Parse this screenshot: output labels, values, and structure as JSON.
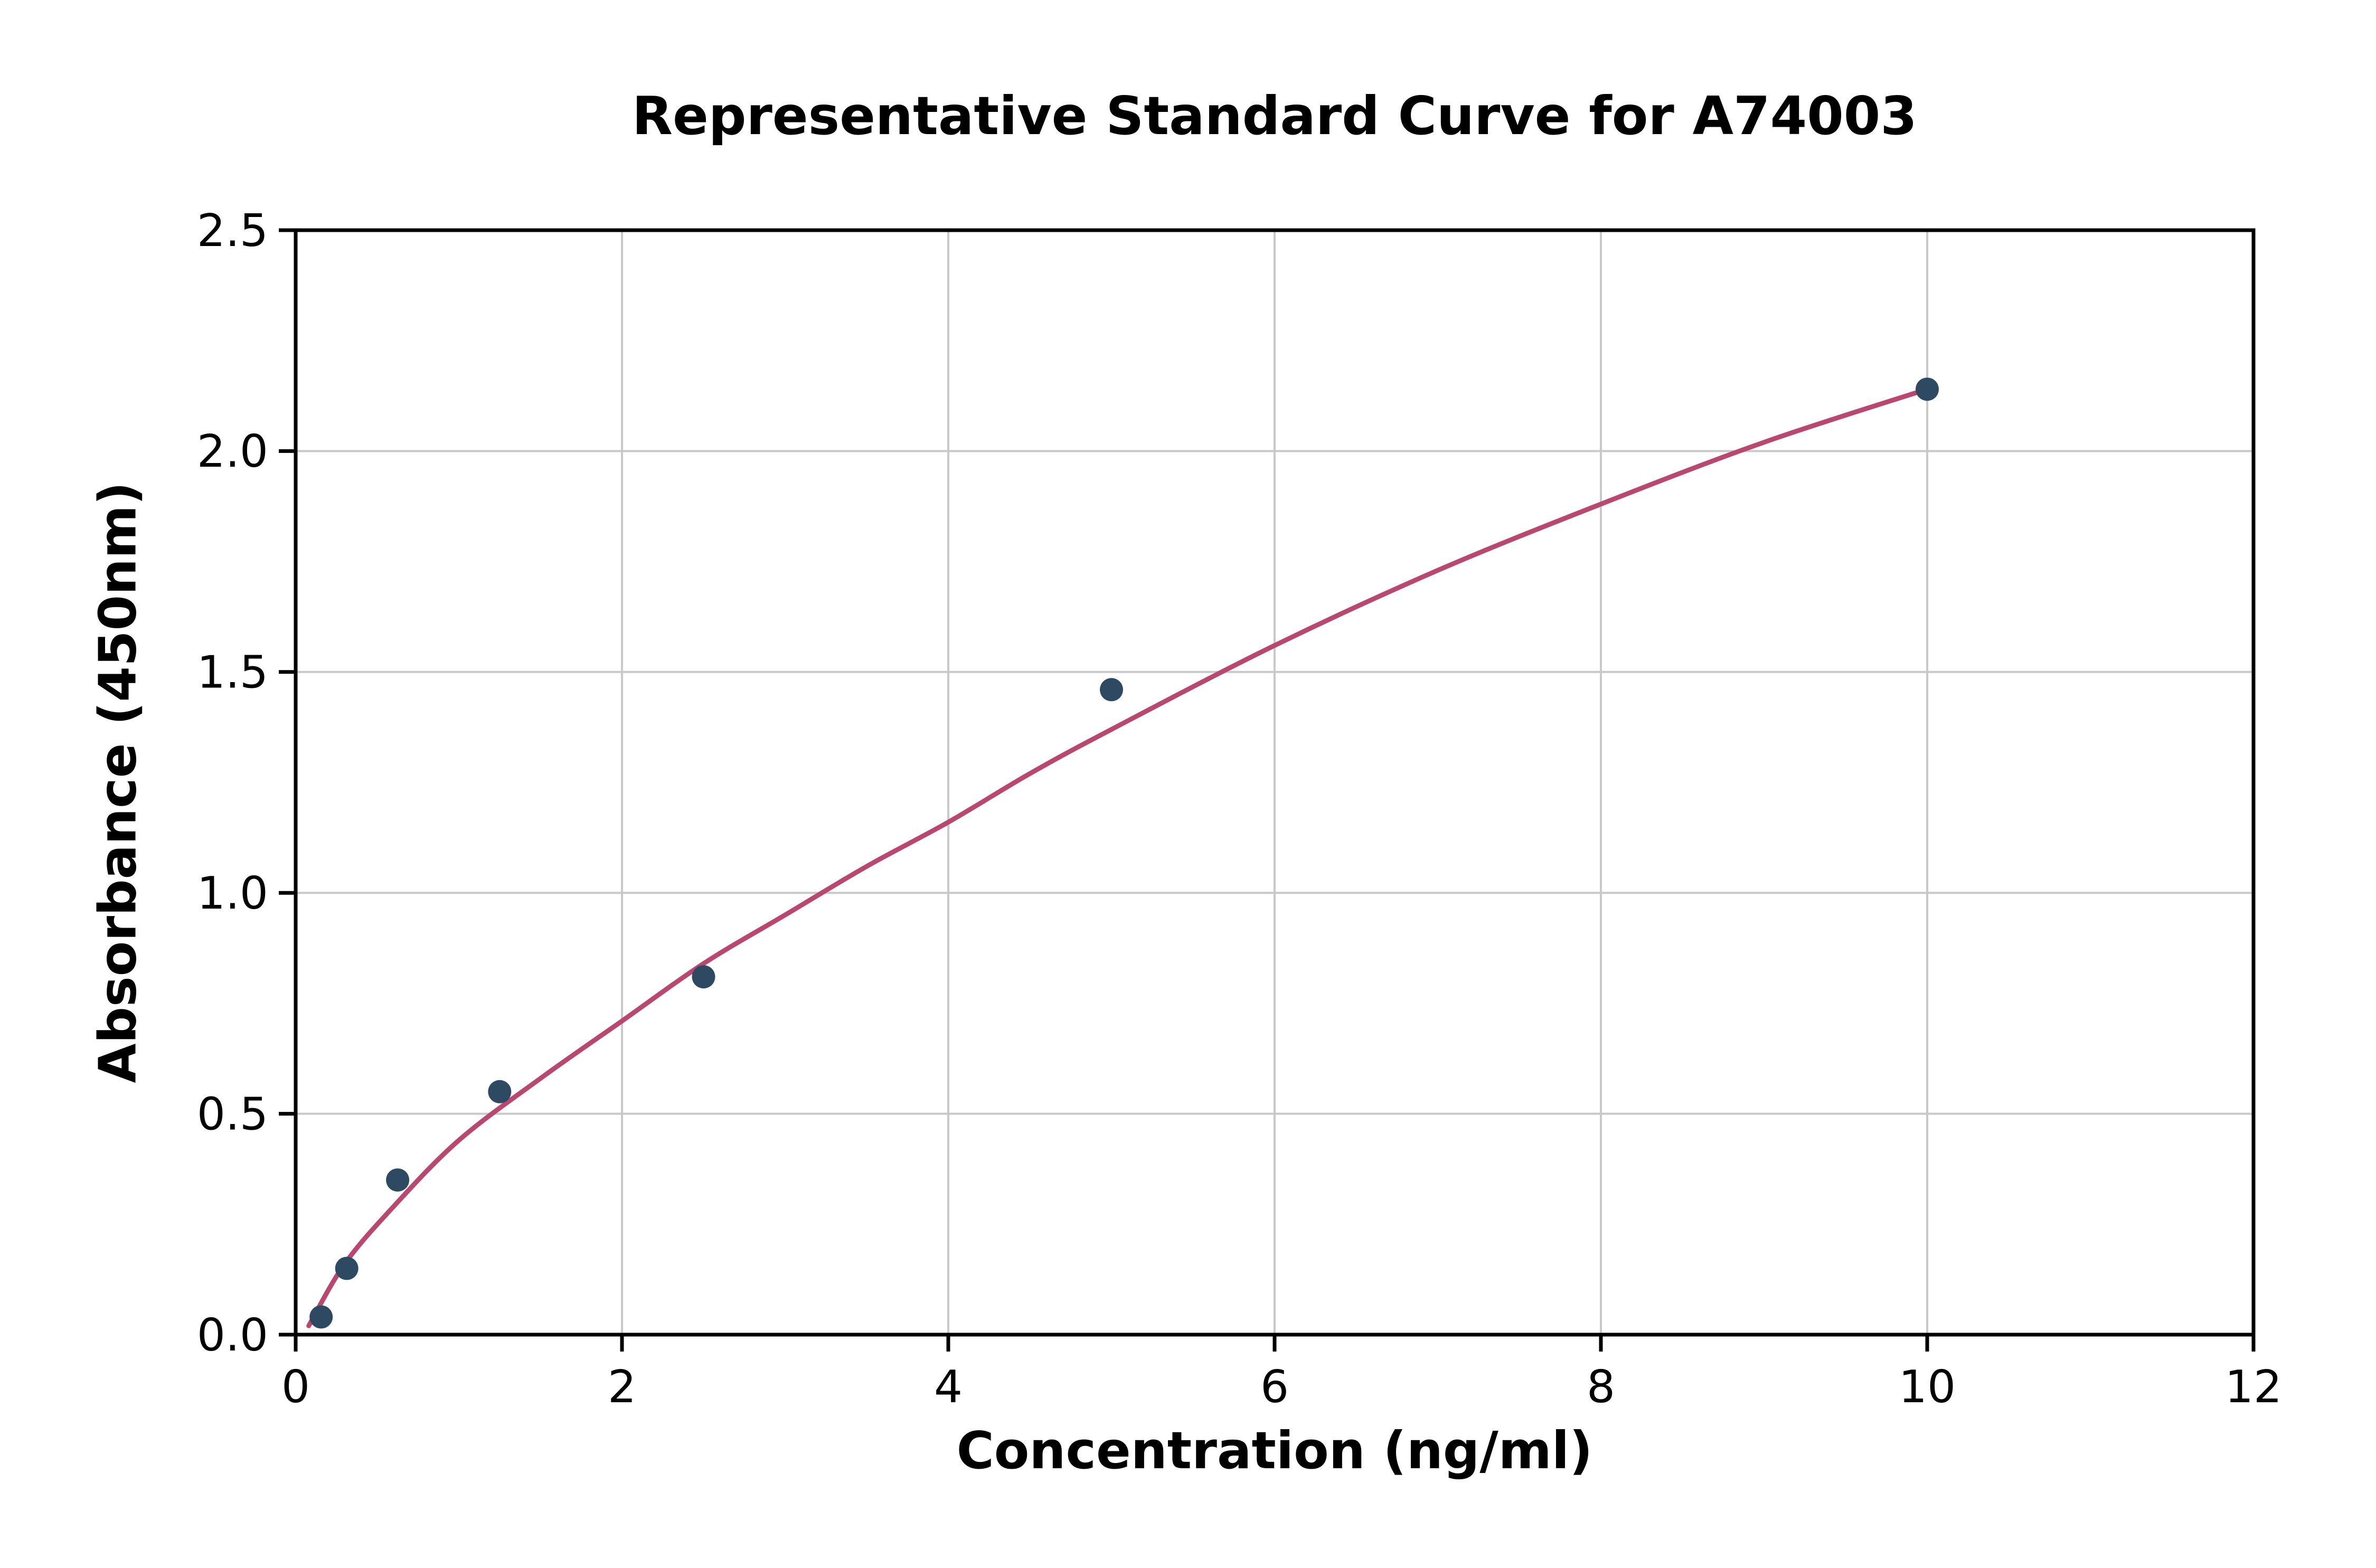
{
  "chart_data": {
    "type": "scatter",
    "title": "Representative Standard Curve for A74003",
    "xlabel": "Concentration (ng/ml)",
    "ylabel": "Absorbance (450nm)",
    "xlim": [
      0,
      12
    ],
    "ylim": [
      0,
      2.5
    ],
    "xticks": [
      0,
      2,
      4,
      6,
      8,
      10,
      12
    ],
    "xtick_labels": [
      "0",
      "2",
      "4",
      "6",
      "8",
      "10",
      "12"
    ],
    "yticks": [
      0,
      0.5,
      1.0,
      1.5,
      2.0,
      2.5
    ],
    "ytick_labels": [
      "0.0",
      "0.5",
      "1.0",
      "1.5",
      "2.0",
      "2.5"
    ],
    "grid": true,
    "legend": "none",
    "points": [
      {
        "x": 0.156,
        "y": 0.04
      },
      {
        "x": 0.313,
        "y": 0.15
      },
      {
        "x": 0.625,
        "y": 0.35
      },
      {
        "x": 1.25,
        "y": 0.55
      },
      {
        "x": 2.5,
        "y": 0.81
      },
      {
        "x": 5,
        "y": 1.46
      },
      {
        "x": 10,
        "y": 2.14
      }
    ],
    "fit_curve": [
      [
        0.08,
        0.02
      ],
      [
        0.3,
        0.16
      ],
      [
        0.6,
        0.29
      ],
      [
        1.0,
        0.44
      ],
      [
        1.5,
        0.58
      ],
      [
        2.0,
        0.71
      ],
      [
        2.5,
        0.84
      ],
      [
        3.0,
        0.95
      ],
      [
        3.5,
        1.06
      ],
      [
        4.0,
        1.16
      ],
      [
        4.5,
        1.27
      ],
      [
        5.0,
        1.37
      ],
      [
        6.0,
        1.56
      ],
      [
        7.0,
        1.73
      ],
      [
        8.0,
        1.88
      ],
      [
        9.0,
        2.02
      ],
      [
        10.0,
        2.14
      ]
    ],
    "colors": {
      "curve": "#b8486f",
      "points": "#2e4a63",
      "grid": "#c9c9c9",
      "axis": "#000000"
    }
  }
}
